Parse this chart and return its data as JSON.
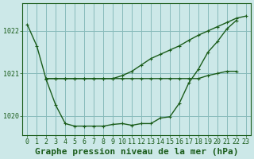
{
  "xlabel": "Graphe pression niveau de la mer (hPa)",
  "background_color": "#cce8e8",
  "grid_color": "#88bbbb",
  "line_color": "#1a5c1a",
  "xlim": [
    -0.5,
    23.5
  ],
  "ylim": [
    1019.55,
    1022.65
  ],
  "yticks": [
    1020,
    1021,
    1022
  ],
  "xticks": [
    0,
    1,
    2,
    3,
    4,
    5,
    6,
    7,
    8,
    9,
    10,
    11,
    12,
    13,
    14,
    15,
    16,
    17,
    18,
    19,
    20,
    21,
    22,
    23
  ],
  "series": {
    "main": [
      1022.15,
      1021.65,
      1020.85,
      1020.25,
      1019.82,
      1019.76,
      1019.76,
      1019.76,
      1019.76,
      1019.8,
      1019.82,
      1019.78,
      1019.82,
      1019.82,
      1019.95,
      1019.98,
      1020.3,
      1020.78,
      1021.1,
      1021.5,
      1021.75,
      1022.05,
      1022.25,
      null
    ],
    "flat": [
      null,
      null,
      1020.88,
      1020.88,
      1020.88,
      1020.88,
      1020.88,
      1020.88,
      1020.88,
      1020.88,
      1020.88,
      1020.88,
      1020.88,
      1020.88,
      1020.88,
      1020.88,
      1020.88,
      1020.88,
      1020.88,
      1020.95,
      1021.0,
      1021.05,
      1021.05,
      null
    ],
    "diagonal": [
      null,
      null,
      1020.88,
      1020.88,
      1020.88,
      1020.88,
      1020.88,
      1020.88,
      1020.88,
      1020.88,
      1020.95,
      1021.05,
      1021.2,
      1021.35,
      1021.45,
      1021.55,
      1021.65,
      1021.78,
      1021.9,
      1022.0,
      1022.1,
      1022.2,
      1022.3,
      1022.35
    ]
  },
  "xlabel_fontsize": 8,
  "tick_fontsize": 6,
  "marker_size": 3
}
